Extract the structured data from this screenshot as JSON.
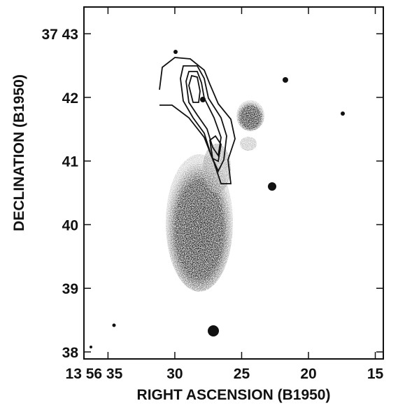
{
  "chart_data": {
    "type": "image",
    "x_label": "RIGHT ASCENSION (B1950)",
    "y_label": "DECLINATION (B1950)",
    "xlim": [
      36.8,
      14.4
    ],
    "xticks": [
      {
        "value": 35,
        "label": "13 56 35"
      },
      30,
      25,
      20,
      15
    ],
    "ylim": [
      37.89,
      43.42
    ],
    "yticks": [
      38,
      39,
      40,
      41,
      42,
      {
        "value": 43,
        "label": "37 43"
      }
    ]
  }
}
